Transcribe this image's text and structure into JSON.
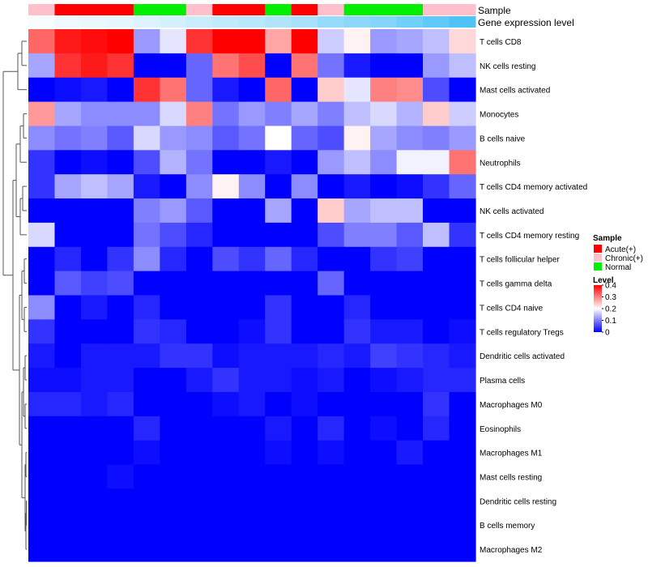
{
  "chart_data": {
    "type": "heatmap",
    "annotation_labels": {
      "sample": "Sample",
      "gene_expression": "Gene expression level"
    },
    "sample_groups": [
      "Chronic(+)",
      "Acute(+)",
      "Acute(+)",
      "Acute(+)",
      "Normal",
      "Normal",
      "Chronic(+)",
      "Acute(+)",
      "Acute(+)",
      "Normal",
      "Acute(+)",
      "Chronic(+)",
      "Normal",
      "Normal",
      "Normal",
      "Chronic(+)",
      "Chronic(+)"
    ],
    "gene_expression_level": [
      0.05,
      0.1,
      0.12,
      0.15,
      0.2,
      0.25,
      0.3,
      0.35,
      0.4,
      0.45,
      0.5,
      0.6,
      0.65,
      0.7,
      0.8,
      0.9,
      1.0
    ],
    "rows": [
      "T cells CD8",
      "NK cells resting",
      "Mast cells activated",
      "Monocytes",
      "B cells naive",
      "Neutrophils",
      "T cells CD4 memory activated",
      "NK cells activated",
      "T cells CD4 memory resting",
      "T cells follicular helper",
      "T cells gamma delta",
      "T cells CD4 naive",
      "T cells regulatory  Tregs",
      "Dendritic cells activated",
      "Plasma cells",
      "Macrophages M0",
      "Eosinophils",
      "Macrophages M1",
      "Mast cells resting",
      "Dendritic cells resting",
      "B cells memory",
      "Macrophages M2"
    ],
    "values": [
      [
        0.32,
        0.38,
        0.39,
        0.4,
        0.12,
        0.18,
        0.36,
        0.4,
        0.4,
        0.27,
        0.4,
        0.16,
        0.21,
        0.12,
        0.13,
        0.15,
        0.23
      ],
      [
        0.13,
        0.36,
        0.38,
        0.36,
        0.0,
        0.0,
        0.08,
        0.31,
        0.34,
        0.0,
        0.31,
        0.09,
        0.02,
        0.0,
        0.0,
        0.12,
        0.15
      ],
      [
        0.0,
        0.01,
        0.02,
        0.0,
        0.36,
        0.31,
        0.08,
        0.02,
        0.0,
        0.32,
        0.0,
        0.24,
        0.18,
        0.3,
        0.29,
        0.06,
        0.0
      ],
      [
        0.28,
        0.13,
        0.11,
        0.11,
        0.11,
        0.17,
        0.3,
        0.09,
        0.12,
        0.1,
        0.13,
        0.1,
        0.15,
        0.17,
        0.14,
        0.24,
        0.16
      ],
      [
        0.11,
        0.09,
        0.1,
        0.07,
        0.17,
        0.12,
        0.11,
        0.07,
        0.09,
        0.2,
        0.08,
        0.06,
        0.21,
        0.13,
        0.11,
        0.1,
        0.12
      ],
      [
        0.04,
        0.0,
        0.01,
        0.0,
        0.06,
        0.14,
        0.09,
        0.0,
        0.0,
        0.02,
        0.0,
        0.12,
        0.15,
        0.11,
        0.19,
        0.19,
        0.31
      ],
      [
        0.04,
        0.13,
        0.15,
        0.13,
        0.02,
        0.0,
        0.11,
        0.21,
        0.11,
        0.0,
        0.11,
        0.0,
        0.02,
        0.0,
        0.01,
        0.04,
        0.08
      ],
      [
        0.0,
        0.0,
        0.0,
        0.0,
        0.1,
        0.12,
        0.07,
        0.0,
        0.0,
        0.13,
        0.0,
        0.24,
        0.13,
        0.15,
        0.15,
        0.0,
        0.0
      ],
      [
        0.17,
        0.0,
        0.0,
        0.0,
        0.09,
        0.06,
        0.03,
        0.0,
        0.0,
        0.0,
        0.0,
        0.06,
        0.1,
        0.1,
        0.07,
        0.15,
        0.04
      ],
      [
        0.0,
        0.03,
        0.0,
        0.04,
        0.11,
        0.03,
        0.0,
        0.06,
        0.04,
        0.08,
        0.03,
        0.0,
        0.0,
        0.04,
        0.05,
        0.0,
        0.0
      ],
      [
        0.0,
        0.07,
        0.05,
        0.06,
        0.0,
        0.0,
        0.0,
        0.0,
        0.0,
        0.0,
        0.0,
        0.08,
        0.0,
        0.0,
        0.0,
        0.0,
        0.0
      ],
      [
        0.11,
        0.0,
        0.02,
        0.0,
        0.03,
        0.0,
        0.0,
        0.0,
        0.0,
        0.04,
        0.0,
        0.0,
        0.03,
        0.0,
        0.0,
        0.0,
        0.0
      ],
      [
        0.04,
        0.0,
        0.0,
        0.0,
        0.04,
        0.03,
        0.0,
        0.0,
        0.01,
        0.04,
        0.0,
        0.0,
        0.04,
        0.02,
        0.02,
        0.0,
        0.01
      ],
      [
        0.02,
        0.0,
        0.02,
        0.02,
        0.02,
        0.04,
        0.04,
        0.01,
        0.02,
        0.02,
        0.02,
        0.03,
        0.02,
        0.05,
        0.04,
        0.03,
        0.02
      ],
      [
        0.01,
        0.01,
        0.02,
        0.02,
        0.0,
        0.0,
        0.02,
        0.04,
        0.02,
        0.02,
        0.01,
        0.02,
        0.0,
        0.01,
        0.02,
        0.03,
        0.03
      ],
      [
        0.03,
        0.03,
        0.02,
        0.03,
        0.0,
        0.0,
        0.0,
        0.01,
        0.02,
        0.0,
        0.01,
        0.0,
        0.0,
        0.0,
        0.0,
        0.04,
        0.0
      ],
      [
        0.0,
        0.0,
        0.0,
        0.0,
        0.03,
        0.0,
        0.0,
        0.0,
        0.0,
        0.02,
        0.0,
        0.03,
        0.0,
        0.01,
        0.0,
        0.03,
        0.0
      ],
      [
        0.0,
        0.0,
        0.0,
        0.0,
        0.01,
        0.0,
        0.0,
        0.0,
        0.0,
        0.01,
        0.0,
        0.01,
        0.0,
        0.0,
        0.02,
        0.0,
        0.0
      ],
      [
        0.0,
        0.0,
        0.0,
        0.01,
        0.0,
        0.0,
        0.0,
        0.0,
        0.0,
        0.0,
        0.0,
        0.0,
        0.0,
        0.0,
        0.0,
        0.0,
        0.0
      ],
      [
        0.0,
        0.0,
        0.0,
        0.0,
        0.0,
        0.0,
        0.0,
        0.0,
        0.0,
        0.0,
        0.0,
        0.0,
        0.0,
        0.0,
        0.0,
        0.0,
        0.0
      ],
      [
        0.0,
        0.0,
        0.0,
        0.0,
        0.0,
        0.0,
        0.0,
        0.0,
        0.0,
        0.0,
        0.0,
        0.0,
        0.0,
        0.0,
        0.0,
        0.0,
        0.0
      ],
      [
        0.0,
        0.0,
        0.0,
        0.0,
        0.0,
        0.0,
        0.0,
        0.0,
        0.0,
        0.0,
        0.0,
        0.0,
        0.0,
        0.0,
        0.0,
        0.0,
        0.0
      ]
    ],
    "color_range": [
      0,
      0.4
    ],
    "legend": {
      "sample_title": "Sample",
      "sample_items": [
        {
          "label": "Acute(+)",
          "color": "#ff0000"
        },
        {
          "label": "Chronic(+)",
          "color": "#ffc0cb"
        },
        {
          "label": "Normal",
          "color": "#00ee00"
        }
      ],
      "level_title": "Level",
      "level_ticks": [
        "0.4",
        "0.3",
        "0.2",
        "0.1",
        "0"
      ],
      "level_tick_values": [
        0.4,
        0.3,
        0.2,
        0.1,
        0
      ]
    },
    "colors": {
      "low": "#0000ff",
      "mid": "#ffffff",
      "high": "#ff0000",
      "gene_low": "#ffffff",
      "gene_high": "#4fc3f7"
    }
  }
}
